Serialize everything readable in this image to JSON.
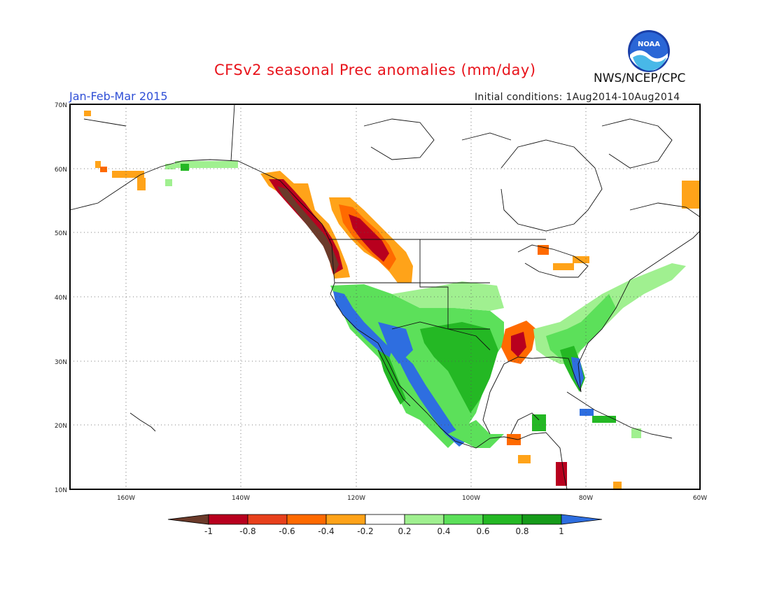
{
  "header": {
    "title": "CFSv2 seasonal Prec anomalies (mm/day)",
    "period": "Jan-Feb-Mar 2015",
    "initial_conditions": "Initial conditions: 1Aug2014-10Aug2014",
    "agency": "NWS/NCEP/CPC",
    "logo_text": "NOAA"
  },
  "map": {
    "lat_labels": [
      "70N",
      "60N",
      "50N",
      "40N",
      "30N",
      "20N",
      "10N"
    ],
    "lon_labels": [
      "160W",
      "140W",
      "120W",
      "100W",
      "80W",
      "60W"
    ],
    "gridlines": "dotted"
  },
  "colorbar": {
    "labels": [
      "-1",
      "-0.8",
      "-0.6",
      "-0.4",
      "-0.2",
      "0.2",
      "0.4",
      "0.6",
      "0.8",
      "1"
    ],
    "colors": [
      "#6b3a2a",
      "#b8001e",
      "#e8401c",
      "#ff6a00",
      "#ffa319",
      "#ffffff",
      "#a0f090",
      "#5ce05a",
      "#24b824",
      "#169b1a",
      "#2e6ee0"
    ],
    "units": "mm/day"
  },
  "regions": [
    {
      "name": "Pacific Northwest coast",
      "anomaly": "-1 to -0.8"
    },
    {
      "name": "Interior British Columbia / Northern Rockies",
      "anomaly": "-0.8 to -0.2"
    },
    {
      "name": "California coast and Baja",
      "anomaly": "0.8 to 1+"
    },
    {
      "name": "Southern Plains / Texas",
      "anomaly": "0.4 to 0.8"
    },
    {
      "name": "Florida peninsula",
      "anomaly": "0.8 to 1+"
    },
    {
      "name": "Lower Mississippi Valley",
      "anomaly": "-0.8 to -0.2"
    },
    {
      "name": "Southwest Alaska",
      "anomaly": "-0.4 to -0.2"
    }
  ]
}
